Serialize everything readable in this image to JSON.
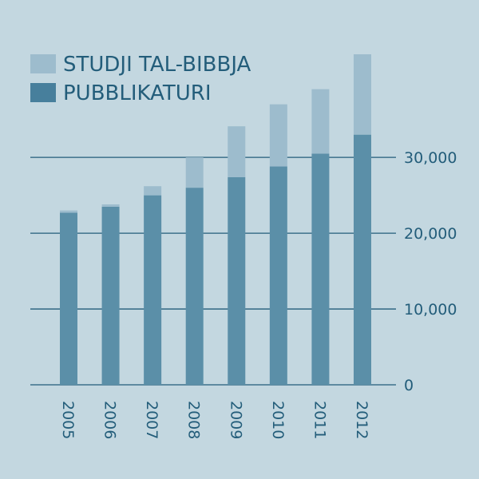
{
  "colors": {
    "background": "#c3d7e0",
    "studji": "#9dbccd",
    "pubblikaturi": "#5b8fa8",
    "legend_dark": "#477f9c",
    "grid": "#235d7a",
    "text": "#235d7a"
  },
  "chart_data": {
    "type": "bar",
    "stacked": true,
    "title": "",
    "xlabel": "",
    "ylabel": "",
    "categories": [
      "2005",
      "2006",
      "2007",
      "2008",
      "2009",
      "2010",
      "2011",
      "2012"
    ],
    "series": [
      {
        "name": "PUBBLIKATURI",
        "values": [
          22700,
          23500,
          25000,
          26000,
          27400,
          28800,
          30500,
          33000
        ]
      },
      {
        "name": "STUDJI TAL-BIBBJA",
        "values": [
          300,
          300,
          1200,
          4000,
          6700,
          8200,
          8500,
          10600
        ]
      }
    ],
    "legend_order": [
      "STUDJI TAL-BIBBJA",
      "PUBBLIKATURI"
    ],
    "legend_position": "top-left",
    "y_ticks": [
      0,
      10000,
      20000,
      30000
    ],
    "y_tick_labels": [
      "0",
      "10,000",
      "20,000",
      "30,000"
    ],
    "y_axis_side": "right",
    "ylim": [
      0,
      43600
    ],
    "grid": true
  }
}
